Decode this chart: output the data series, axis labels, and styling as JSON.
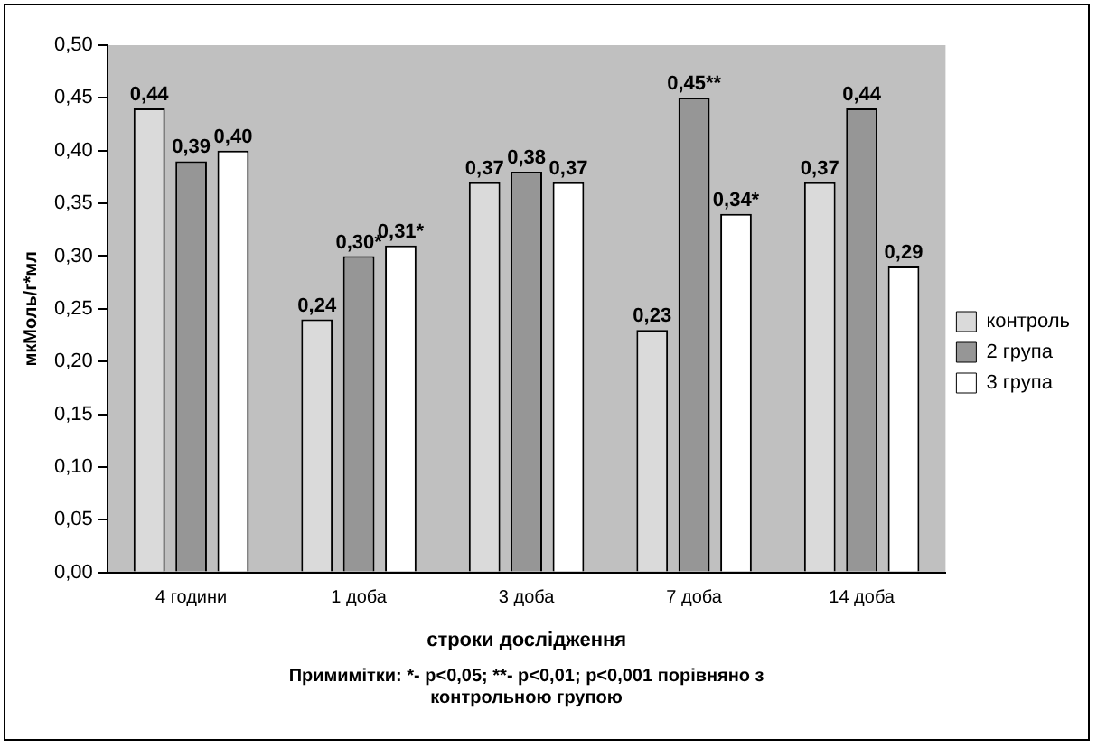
{
  "chart_data": {
    "type": "bar",
    "xlabel": "строки дослідження",
    "ylabel": "мкМоль/г*мл",
    "categories": [
      "4 години",
      "1 доба",
      "3 доба",
      "7 доба",
      "14 доба"
    ],
    "series": [
      {
        "name": "контроль",
        "color": "#dadada",
        "values": [
          0.44,
          0.24,
          0.37,
          0.23,
          0.37
        ],
        "value_labels": [
          "0,44",
          "0,24",
          "0,37",
          "0,23",
          "0,37"
        ]
      },
      {
        "name": "2 група",
        "color": "#969696",
        "values": [
          0.39,
          0.3,
          0.38,
          0.45,
          0.44
        ],
        "value_labels": [
          "0,39",
          "0,30*",
          "0,38",
          "0,45**",
          "0,44"
        ]
      },
      {
        "name": "3 група",
        "color": "#ffffff",
        "values": [
          0.4,
          0.31,
          0.37,
          0.34,
          0.29
        ],
        "value_labels": [
          "0,40",
          "0,31*",
          "0,37",
          "0,34*",
          "0,29"
        ]
      }
    ],
    "ylim": [
      0,
      0.5
    ],
    "yticks": [
      {
        "value": 0,
        "label": "0,00"
      },
      {
        "value": 0.05,
        "label": "0,05"
      },
      {
        "value": 0.1,
        "label": "0,10"
      },
      {
        "value": 0.15,
        "label": "0,15"
      },
      {
        "value": 0.2,
        "label": "0,20"
      },
      {
        "value": 0.25,
        "label": "0,25"
      },
      {
        "value": 0.3,
        "label": "0,30"
      },
      {
        "value": 0.35,
        "label": "0,35"
      },
      {
        "value": 0.4,
        "label": "0,40"
      },
      {
        "value": 0.45,
        "label": "0,45"
      },
      {
        "value": 0.5,
        "label": "0,50"
      }
    ],
    "grid": false,
    "legend": "right",
    "annotations": [
      "Примимітки: *- p<0,05; **- p<0,01; p<0,001 порівняно з контрольною групою"
    ]
  }
}
